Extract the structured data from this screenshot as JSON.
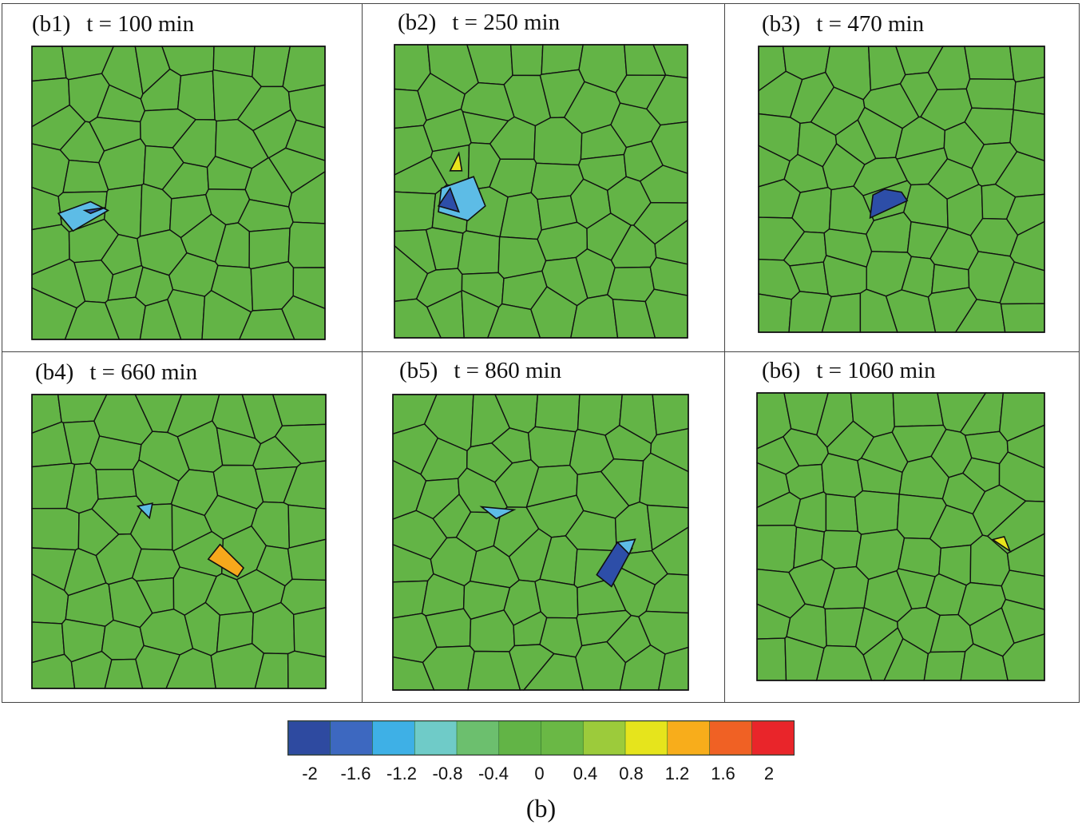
{
  "figure": {
    "caption": "(b)",
    "panels": [
      {
        "id": "(b1)",
        "time": "t = 100 min"
      },
      {
        "id": "(b2)",
        "time": "t = 250 min"
      },
      {
        "id": "(b3)",
        "time": "t = 470 min"
      },
      {
        "id": "(b4)",
        "time": "t = 660 min"
      },
      {
        "id": "(b5)",
        "time": "t = 860 min"
      },
      {
        "id": "(b6)",
        "time": "t = 1060 min"
      }
    ],
    "colorbar": {
      "ticks": [
        "-2",
        "-1.6",
        "-1.2",
        "-0.8",
        "-0.4",
        "0",
        "0.4",
        "0.8",
        "1.2",
        "1.6",
        "2"
      ],
      "colors": [
        "#2e4aa0",
        "#3d68c0",
        "#3eb0e6",
        "#6fcbc8",
        "#6cbf6e",
        "#62b446",
        "#6ab845",
        "#9ccb3b",
        "#e6e41c",
        "#f8ad1b",
        "#f06124",
        "#e9252a"
      ]
    },
    "colors": {
      "grain_fill": "#63b446",
      "grain_edge": "#111111",
      "defect_blue": "#2d4ea8",
      "defect_light_blue": "#5dbce6",
      "defect_orange": "#f6a81c",
      "defect_yellow": "#e8e41c"
    }
  }
}
